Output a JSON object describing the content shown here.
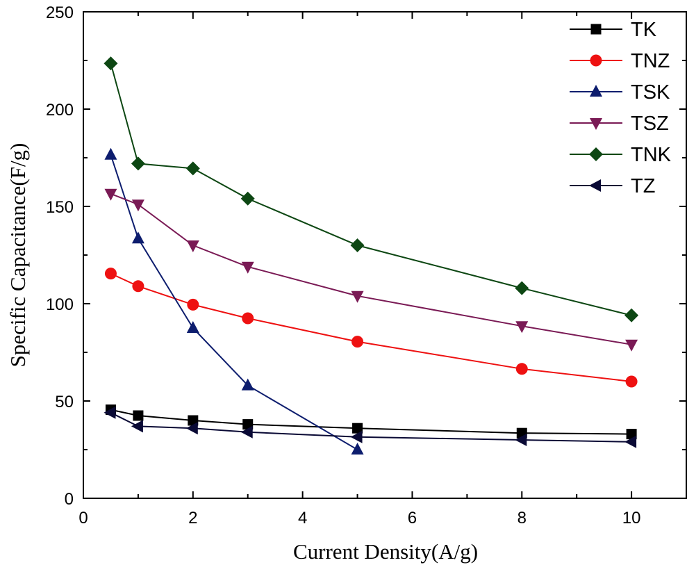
{
  "chart_data": {
    "type": "line",
    "title": "",
    "xlabel": "Current Density(A/g)",
    "ylabel": "Specific Capacitance(F/g)",
    "xlim": [
      0,
      11
    ],
    "ylim": [
      0,
      250
    ],
    "x_ticks": [
      0,
      2,
      4,
      6,
      8,
      10
    ],
    "y_ticks": [
      0,
      50,
      100,
      150,
      200,
      250
    ],
    "x_tick_labels": [
      "0",
      "2",
      "4",
      "6",
      "8",
      "10"
    ],
    "y_tick_labels": [
      "0",
      "50",
      "100",
      "150",
      "200",
      "250"
    ],
    "grid": false,
    "legend_position": "top-right",
    "series": [
      {
        "name": "TK",
        "color": "#000000",
        "marker": "square",
        "x": [
          0.5,
          1,
          2,
          3,
          5,
          8,
          10
        ],
        "values": [
          45.5,
          42.5,
          40,
          38,
          36,
          33.5,
          33
        ]
      },
      {
        "name": "TNZ",
        "color": "#ee1111",
        "marker": "circle",
        "x": [
          0.5,
          1,
          2,
          3,
          5,
          8,
          10
        ],
        "values": [
          115.5,
          109,
          99.5,
          92.5,
          80.5,
          66.5,
          60
        ]
      },
      {
        "name": "TSK",
        "color": "#0d1d6e",
        "marker": "triangle-up",
        "x": [
          0.5,
          1,
          2,
          3,
          5
        ],
        "values": [
          176.5,
          133.5,
          87.5,
          58,
          25
        ]
      },
      {
        "name": "TSZ",
        "color": "#7a1a55",
        "marker": "triangle-down",
        "x": [
          0.5,
          1,
          2,
          3,
          5,
          8,
          10
        ],
        "values": [
          156.5,
          151,
          130,
          119,
          104,
          88.5,
          79
        ]
      },
      {
        "name": "TNK",
        "color": "#0d4713",
        "marker": "diamond",
        "x": [
          0.5,
          1,
          2,
          3,
          5,
          8,
          10
        ],
        "values": [
          223.5,
          172,
          169.5,
          154,
          130,
          108,
          94
        ]
      },
      {
        "name": "TZ",
        "color": "#0a0a35",
        "marker": "triangle-left",
        "x": [
          0.5,
          1,
          2,
          3,
          5,
          8,
          10
        ],
        "values": [
          44,
          37,
          36,
          34,
          31.5,
          30,
          29
        ]
      }
    ]
  }
}
